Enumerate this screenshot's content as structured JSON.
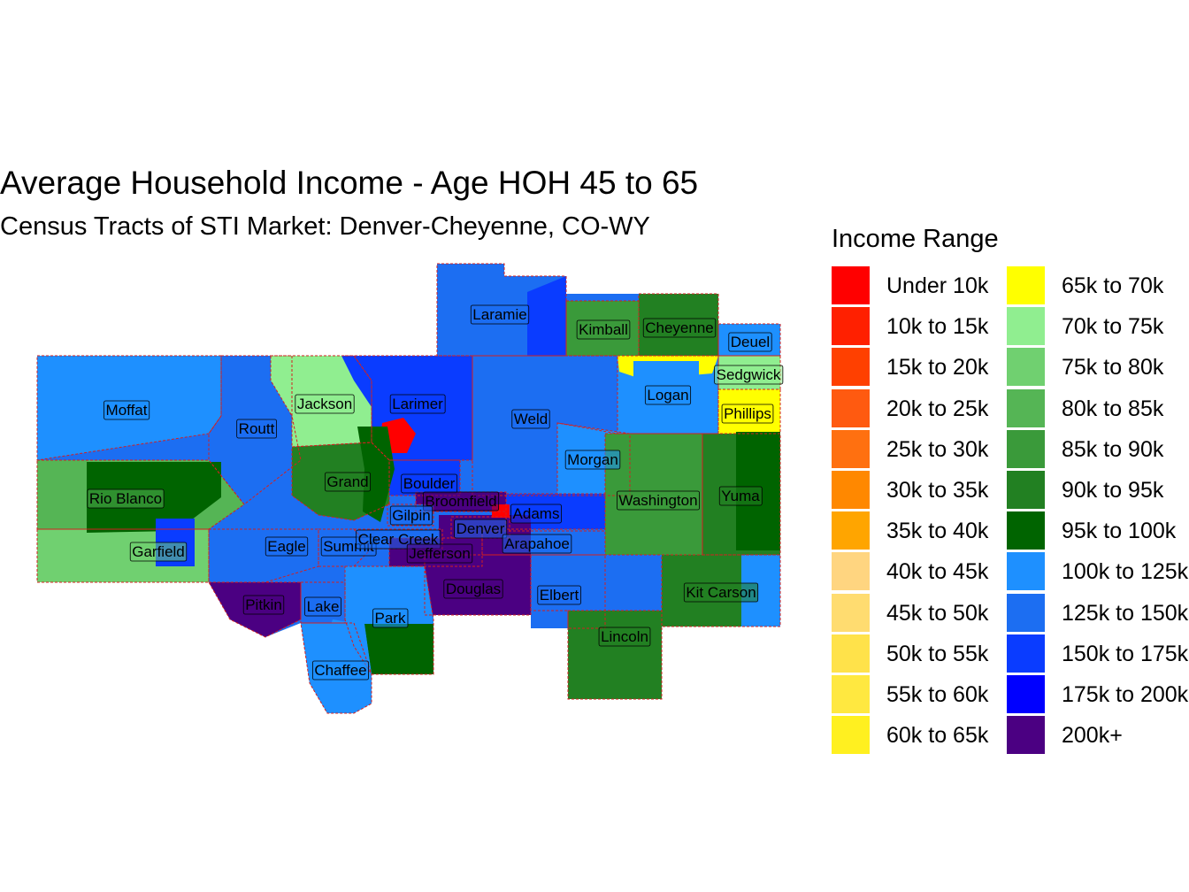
{
  "title": "Average Household Income - Age HOH 45 to 65",
  "subtitle": "Census Tracts of STI Market: Denver-Cheyenne, CO-WY",
  "legend": {
    "title": "Income Range",
    "items": [
      {
        "label": "Under 10k",
        "color": "#FF0000"
      },
      {
        "label": "10k to 15k",
        "color": "#FF2000"
      },
      {
        "label": "15k to 20k",
        "color": "#FF4000"
      },
      {
        "label": "20k to 25k",
        "color": "#FF5A10"
      },
      {
        "label": "25k to 30k",
        "color": "#FF7010"
      },
      {
        "label": "30k to 35k",
        "color": "#FF8800"
      },
      {
        "label": "35k to 40k",
        "color": "#FFA500"
      },
      {
        "label": "40k to 45k",
        "color": "#FFD580"
      },
      {
        "label": "45k to 50k",
        "color": "#FFDC70"
      },
      {
        "label": "50k to 55k",
        "color": "#FFE24A"
      },
      {
        "label": "55k to 60k",
        "color": "#FFE840"
      },
      {
        "label": "60k to 65k",
        "color": "#FFF020"
      },
      {
        "label": "65k to 70k",
        "color": "#FFFF00"
      },
      {
        "label": "70k to 75k",
        "color": "#90EE90"
      },
      {
        "label": "75k to 80k",
        "color": "#70D070"
      },
      {
        "label": "80k to 85k",
        "color": "#55B555"
      },
      {
        "label": "85k to 90k",
        "color": "#3A9A3A"
      },
      {
        "label": "90k to 95k",
        "color": "#228022"
      },
      {
        "label": "95k to 100k",
        "color": "#006400"
      },
      {
        "label": "100k to 125k",
        "color": "#1E90FF"
      },
      {
        "label": "125k to 150k",
        "color": "#1C6EF2"
      },
      {
        "label": "150k to 175k",
        "color": "#0A3CFF"
      },
      {
        "label": "175k to 200k",
        "color": "#0000FF"
      },
      {
        "label": "200k+",
        "color": "#4B0082"
      }
    ]
  },
  "counties": [
    {
      "name": "Laramie",
      "color": "#1C6EF2"
    },
    {
      "name": "Kimball",
      "color": "#3A9A3A"
    },
    {
      "name": "Cheyenne",
      "color": "#228022"
    },
    {
      "name": "Deuel",
      "color": "#1E90FF"
    },
    {
      "name": "Sedgwick",
      "color": "#90EE90"
    },
    {
      "name": "Logan",
      "color": "#1E90FF"
    },
    {
      "name": "Phillips",
      "color": "#FFFF00"
    },
    {
      "name": "Moffat",
      "color": "#1E90FF"
    },
    {
      "name": "Routt",
      "color": "#1C6EF2"
    },
    {
      "name": "Jackson",
      "color": "#90EE90"
    },
    {
      "name": "Larimer",
      "color": "#0A3CFF"
    },
    {
      "name": "Weld",
      "color": "#1C6EF2"
    },
    {
      "name": "Morgan",
      "color": "#1E90FF"
    },
    {
      "name": "Rio Blanco",
      "color": "#55B555"
    },
    {
      "name": "Grand",
      "color": "#228022"
    },
    {
      "name": "Boulder",
      "color": "#0A3CFF"
    },
    {
      "name": "Broomfield",
      "color": "#4B0082"
    },
    {
      "name": "Gilpin",
      "color": "#1C6EF2"
    },
    {
      "name": "Adams",
      "color": "#0A3CFF"
    },
    {
      "name": "Denver",
      "color": "#1C6EF2"
    },
    {
      "name": "Washington",
      "color": "#3A9A3A"
    },
    {
      "name": "Yuma",
      "color": "#228022"
    },
    {
      "name": "Garfield",
      "color": "#70D070"
    },
    {
      "name": "Eagle",
      "color": "#1C6EF2"
    },
    {
      "name": "Summit",
      "color": "#1C6EF2"
    },
    {
      "name": "Clear Creek",
      "color": "#1C6EF2"
    },
    {
      "name": "Jefferson",
      "color": "#4B0082"
    },
    {
      "name": "Arapahoe",
      "color": "#1C6EF2"
    },
    {
      "name": "Douglas",
      "color": "#4B0082"
    },
    {
      "name": "Elbert",
      "color": "#1C6EF2"
    },
    {
      "name": "Kit Carson",
      "color": "#228022"
    },
    {
      "name": "Pitkin",
      "color": "#4B0082"
    },
    {
      "name": "Lake",
      "color": "#1C6EF2"
    },
    {
      "name": "Park",
      "color": "#1E90FF"
    },
    {
      "name": "Lincoln",
      "color": "#228022"
    },
    {
      "name": "Chaffee",
      "color": "#1E90FF"
    }
  ]
}
